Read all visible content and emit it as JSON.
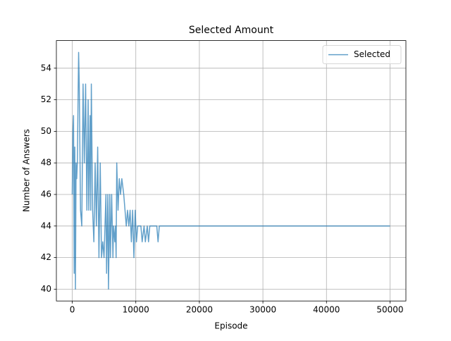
{
  "chart_data": {
    "type": "line",
    "title": "Selected Amount",
    "xlabel": "Episode",
    "ylabel": "Number of Answers",
    "x": [
      0,
      100,
      200,
      300,
      400,
      500,
      600,
      700,
      800,
      1000,
      1100,
      1300,
      1500,
      1700,
      1900,
      2100,
      2300,
      2500,
      2600,
      2800,
      2900,
      3000,
      3200,
      3400,
      3600,
      3800,
      4000,
      4200,
      4400,
      4600,
      4800,
      5000,
      5300,
      5400,
      5600,
      5700,
      5900,
      6000,
      6200,
      6400,
      6500,
      6700,
      6800,
      6900,
      7000,
      7200,
      7400,
      7600,
      7800,
      8100,
      8300,
      8500,
      8700,
      8900,
      9100,
      9300,
      9500,
      9700,
      9900,
      10100,
      10300,
      10800,
      11000,
      11300,
      11500,
      11800,
      12000,
      12200,
      13300,
      13500,
      13700,
      50000
    ],
    "series": [
      {
        "name": "Selected",
        "color": "#1f77b4",
        "values": [
          46,
          50,
          51,
          41,
          49,
          40,
          48,
          47,
          48,
          55,
          53,
          45,
          44,
          53,
          48,
          53,
          45,
          52,
          45,
          51,
          45,
          53,
          45,
          43,
          48,
          44,
          49,
          42,
          48,
          42,
          43,
          42,
          46,
          41,
          46,
          40,
          46,
          42,
          46,
          42,
          44,
          43,
          44,
          42,
          48,
          45,
          47,
          46,
          47,
          46,
          45,
          44,
          45,
          44,
          45,
          43,
          45,
          42,
          45,
          43,
          44,
          44,
          43,
          44,
          43,
          44,
          43,
          44,
          44,
          43,
          44,
          44
        ]
      }
    ],
    "xlim": [
      -2500,
      52500
    ],
    "ylim": [
      39.25,
      55.75
    ],
    "xticks": [
      0,
      10000,
      20000,
      30000,
      40000,
      50000
    ],
    "yticks": [
      40,
      42,
      44,
      46,
      48,
      50,
      52,
      54
    ],
    "grid": true,
    "legend": "upper right"
  }
}
